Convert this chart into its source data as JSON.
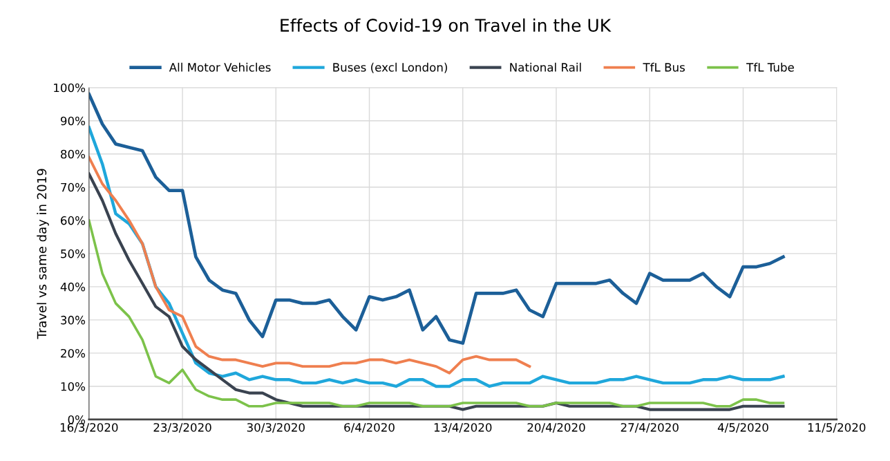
{
  "chart_data": {
    "type": "line",
    "title": "Effects of Covid-19 on Travel in the UK",
    "ylabel": "Travel vs same day in 2019",
    "x": [
      "2020-03-16",
      "2020-03-17",
      "2020-03-18",
      "2020-03-19",
      "2020-03-20",
      "2020-03-21",
      "2020-03-22",
      "2020-03-23",
      "2020-03-24",
      "2020-03-25",
      "2020-03-26",
      "2020-03-27",
      "2020-03-28",
      "2020-03-29",
      "2020-03-30",
      "2020-03-31",
      "2020-04-01",
      "2020-04-02",
      "2020-04-03",
      "2020-04-04",
      "2020-04-05",
      "2020-04-06",
      "2020-04-07",
      "2020-04-08",
      "2020-04-09",
      "2020-04-10",
      "2020-04-11",
      "2020-04-12",
      "2020-04-13",
      "2020-04-14",
      "2020-04-15",
      "2020-04-16",
      "2020-04-17",
      "2020-04-18",
      "2020-04-19",
      "2020-04-20",
      "2020-04-21",
      "2020-04-22",
      "2020-04-23",
      "2020-04-24",
      "2020-04-25",
      "2020-04-26",
      "2020-04-27",
      "2020-04-28",
      "2020-04-29",
      "2020-04-30",
      "2020-05-01",
      "2020-05-02",
      "2020-05-03",
      "2020-05-04",
      "2020-05-05",
      "2020-05-06",
      "2020-05-07"
    ],
    "series": [
      {
        "name": "All Motor Vehicles",
        "color": "#1c5f98",
        "values": [
          98,
          89,
          83,
          82,
          81,
          73,
          69,
          69,
          49,
          42,
          39,
          38,
          30,
          25,
          36,
          36,
          35,
          35,
          36,
          31,
          27,
          37,
          36,
          37,
          39,
          27,
          31,
          24,
          23,
          38,
          38,
          38,
          39,
          33,
          31,
          41,
          41,
          41,
          41,
          42,
          38,
          35,
          44,
          42,
          42,
          42,
          44,
          40,
          37,
          46,
          46,
          47,
          49
        ]
      },
      {
        "name": "Buses (excl London)",
        "color": "#1fa7db",
        "values": [
          88,
          77,
          62,
          59,
          53,
          40,
          35,
          26,
          17,
          14,
          13,
          14,
          12,
          13,
          12,
          12,
          11,
          11,
          12,
          11,
          12,
          11,
          11,
          10,
          12,
          12,
          10,
          10,
          12,
          12,
          10,
          11,
          11,
          11,
          13,
          12,
          11,
          11,
          11,
          12,
          12,
          13,
          12,
          11,
          11,
          11,
          12,
          12,
          13,
          12,
          12,
          12,
          13
        ]
      },
      {
        "name": "National Rail",
        "color": "#3a4350",
        "values": [
          74,
          66,
          56,
          48,
          41,
          34,
          31,
          22,
          18,
          15,
          12,
          9,
          8,
          8,
          6,
          5,
          4,
          4,
          4,
          4,
          4,
          4,
          4,
          4,
          4,
          4,
          4,
          4,
          3,
          4,
          4,
          4,
          4,
          4,
          4,
          5,
          4,
          4,
          4,
          4,
          4,
          4,
          3,
          3,
          3,
          3,
          3,
          3,
          3,
          4,
          4,
          4,
          4
        ]
      },
      {
        "name": "TfL Bus",
        "color": "#ef7f4f",
        "values": [
          79,
          71,
          66,
          60,
          53,
          40,
          33,
          31,
          22,
          19,
          18,
          18,
          17,
          16,
          17,
          17,
          16,
          16,
          16,
          17,
          17,
          18,
          18,
          17,
          18,
          17,
          16,
          14,
          18,
          19,
          18,
          18,
          18,
          16,
          null,
          null,
          null,
          null,
          null,
          null,
          null,
          null,
          null,
          null,
          null,
          null,
          null,
          null,
          null,
          null,
          null,
          null,
          null
        ]
      },
      {
        "name": "TfL Tube",
        "color": "#7cc24a",
        "values": [
          60,
          44,
          35,
          31,
          24,
          13,
          11,
          15,
          9,
          7,
          6,
          6,
          4,
          4,
          5,
          5,
          5,
          5,
          5,
          4,
          4,
          5,
          5,
          5,
          5,
          4,
          4,
          4,
          5,
          5,
          5,
          5,
          5,
          4,
          4,
          5,
          5,
          5,
          5,
          5,
          4,
          4,
          5,
          5,
          5,
          5,
          5,
          4,
          4,
          6,
          6,
          5,
          5
        ]
      }
    ],
    "xlim": [
      "2020-03-16",
      "2020-05-11"
    ],
    "xticks": [
      {
        "value": "2020-03-16",
        "label": "16/3/2020"
      },
      {
        "value": "2020-03-23",
        "label": "23/3/2020"
      },
      {
        "value": "2020-03-30",
        "label": "30/3/2020"
      },
      {
        "value": "2020-04-06",
        "label": "6/4/2020"
      },
      {
        "value": "2020-04-13",
        "label": "13/4/2020"
      },
      {
        "value": "2020-04-20",
        "label": "20/4/2020"
      },
      {
        "value": "2020-04-27",
        "label": "27/4/2020"
      },
      {
        "value": "2020-05-04",
        "label": "4/5/2020"
      },
      {
        "value": "2020-05-11",
        "label": "11/5/2020"
      }
    ],
    "ylim": [
      0,
      100
    ],
    "yticks": [
      {
        "value": 0,
        "label": "0%"
      },
      {
        "value": 10,
        "label": "10%"
      },
      {
        "value": 20,
        "label": "20%"
      },
      {
        "value": 30,
        "label": "30%"
      },
      {
        "value": 40,
        "label": "40%"
      },
      {
        "value": 50,
        "label": "50%"
      },
      {
        "value": 60,
        "label": "60%"
      },
      {
        "value": 70,
        "label": "70%"
      },
      {
        "value": 80,
        "label": "80%"
      },
      {
        "value": 90,
        "label": "90%"
      },
      {
        "value": 100,
        "label": "100%"
      }
    ],
    "grid": true,
    "legend": "top",
    "marker": "none",
    "line_style": "solid"
  }
}
